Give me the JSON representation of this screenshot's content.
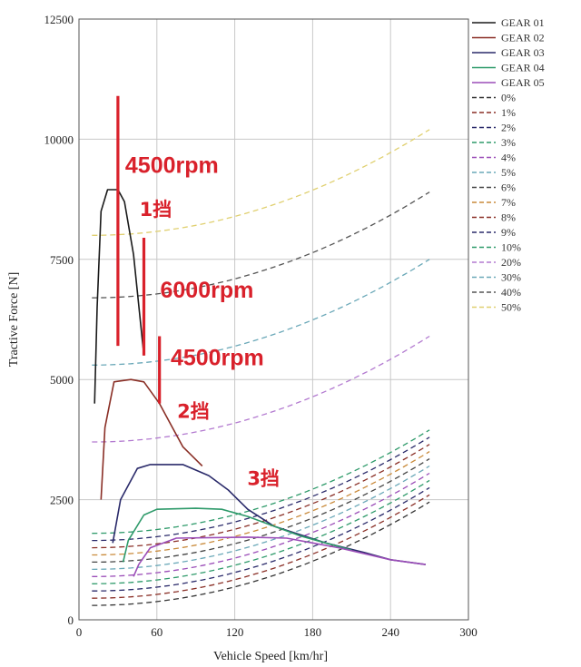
{
  "chart_data": {
    "type": "line",
    "xlabel": "Vehicle Speed [km/hr]",
    "ylabel": "Tractive Force [N]",
    "xlim": [
      0,
      300
    ],
    "ylim": [
      0,
      12500
    ],
    "x_ticks": [
      "0",
      "60",
      "120",
      "180",
      "240",
      "300"
    ],
    "y_ticks": [
      "0",
      "2500",
      "5000",
      "7500",
      "10000",
      "12500"
    ],
    "grid": true,
    "legend_position": "right",
    "gear_series": [
      {
        "name": "GEAR 01",
        "color": "#1a1a1a",
        "points": [
          [
            12,
            4500
          ],
          [
            14,
            6500
          ],
          [
            17,
            8500
          ],
          [
            22,
            8950
          ],
          [
            30,
            8950
          ],
          [
            35,
            8700
          ],
          [
            42,
            7600
          ],
          [
            50,
            5500
          ]
        ]
      },
      {
        "name": "GEAR 02",
        "color": "#8a2f26",
        "points": [
          [
            17,
            2500
          ],
          [
            20,
            4000
          ],
          [
            27,
            4950
          ],
          [
            40,
            5000
          ],
          [
            50,
            4950
          ],
          [
            62,
            4500
          ],
          [
            72,
            4000
          ],
          [
            80,
            3600
          ],
          [
            95,
            3200
          ]
        ]
      },
      {
        "name": "GEAR 03",
        "color": "#2a2a6a",
        "points": [
          [
            26,
            1600
          ],
          [
            32,
            2500
          ],
          [
            45,
            3150
          ],
          [
            55,
            3230
          ],
          [
            80,
            3230
          ],
          [
            100,
            3000
          ],
          [
            115,
            2700
          ],
          [
            130,
            2300
          ],
          [
            150,
            1950
          ],
          [
            190,
            1600
          ],
          [
            220,
            1400
          ],
          [
            240,
            1250
          ],
          [
            267,
            1150
          ]
        ]
      },
      {
        "name": "GEAR 04",
        "color": "#2e9a6a",
        "points": [
          [
            34,
            1200
          ],
          [
            38,
            1650
          ],
          [
            50,
            2180
          ],
          [
            60,
            2300
          ],
          [
            90,
            2320
          ],
          [
            110,
            2300
          ],
          [
            130,
            2150
          ],
          [
            150,
            1950
          ],
          [
            170,
            1750
          ],
          [
            190,
            1600
          ],
          [
            210,
            1450
          ]
        ]
      },
      {
        "name": "GEAR 05",
        "color": "#9b4db8",
        "points": [
          [
            42,
            900
          ],
          [
            46,
            1150
          ],
          [
            55,
            1500
          ],
          [
            75,
            1700
          ],
          [
            130,
            1720
          ],
          [
            160,
            1700
          ],
          [
            180,
            1600
          ],
          [
            200,
            1500
          ],
          [
            240,
            1250
          ],
          [
            267,
            1150
          ]
        ]
      }
    ],
    "resistance_series": [
      {
        "name": "0%",
        "color": "#333333",
        "y0": 300,
        "y_end": 2450
      },
      {
        "name": "1%",
        "color": "#8a2f26",
        "y0": 450,
        "y_end": 2600
      },
      {
        "name": "2%",
        "color": "#2a2a6a",
        "y0": 600,
        "y_end": 2750
      },
      {
        "name": "3%",
        "color": "#2e9a6a",
        "y0": 750,
        "y_end": 2900
      },
      {
        "name": "4%",
        "color": "#9b4db8",
        "y0": 900,
        "y_end": 3050
      },
      {
        "name": "5%",
        "color": "#6aa8b8",
        "y0": 1050,
        "y_end": 3200
      },
      {
        "name": "6%",
        "color": "#444444",
        "y0": 1200,
        "y_end": 3350
      },
      {
        "name": "7%",
        "color": "#c98a3a",
        "y0": 1350,
        "y_end": 3500
      },
      {
        "name": "8%",
        "color": "#8a2f26",
        "y0": 1500,
        "y_end": 3650
      },
      {
        "name": "9%",
        "color": "#2a2a6a",
        "y0": 1650,
        "y_end": 3800
      },
      {
        "name": "10%",
        "color": "#2e9a6a",
        "y0": 1800,
        "y_end": 3950
      },
      {
        "name": "20%",
        "color": "#b37ad0",
        "y0": 3700,
        "y_end": 5900
      },
      {
        "name": "30%",
        "color": "#6aa8b8",
        "y0": 5300,
        "y_end": 7500
      },
      {
        "name": "40%",
        "color": "#555555",
        "y0": 6700,
        "y_end": 8900
      },
      {
        "name": "50%",
        "color": "#e0d070",
        "y0": 8000,
        "y_end": 10200
      }
    ],
    "annotations": [
      {
        "text": "4500rpm",
        "x": 30,
        "y": 9300,
        "kind": "latin"
      },
      {
        "text": "1挡",
        "x": 41,
        "y": 8400,
        "kind": "cn"
      },
      {
        "text": "6000rpm",
        "x": 57,
        "y": 6700,
        "kind": "latin"
      },
      {
        "text": "4500rpm",
        "x": 65,
        "y": 5300,
        "kind": "latin"
      },
      {
        "text": "2挡",
        "x": 70,
        "y": 4200,
        "kind": "cn"
      },
      {
        "text": "3挡",
        "x": 124,
        "y": 2800,
        "kind": "cn"
      }
    ],
    "marker_lines": [
      {
        "x": 30,
        "y1": 5700,
        "y2": 10900
      },
      {
        "x": 50,
        "y1": 5500,
        "y2": 7950
      },
      {
        "x": 62,
        "y1": 4500,
        "y2": 5900
      }
    ]
  }
}
